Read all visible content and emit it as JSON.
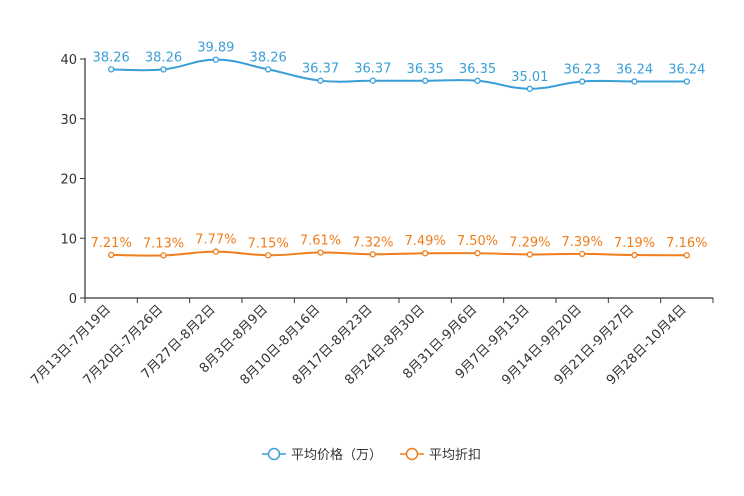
{
  "chart_data": {
    "type": "line",
    "title": "",
    "xlabel": "",
    "ylabel": "",
    "ylim": [
      0,
      40
    ],
    "yticks": [
      "0",
      "10",
      "20",
      "30",
      "40"
    ],
    "grid": false,
    "legend_position": "bottom-center",
    "categories": [
      "7月13日-7月19日",
      "7月20日-7月26日",
      "7月27日-8月2日",
      "8月3日-8月9日",
      "8月10日-8月16日",
      "8月17日-8月23日",
      "8月24日-8月30日",
      "8月31日-9月6日",
      "9月7日-9月13日",
      "9月14日-9月20日",
      "9月21日-9月27日",
      "9月28日-10月4日"
    ],
    "series": [
      {
        "name": "平均价格（万）",
        "color": "#3a9fd8",
        "values": [
          38.26,
          38.26,
          39.89,
          38.26,
          36.37,
          36.37,
          36.35,
          36.35,
          35.01,
          36.23,
          36.24,
          36.24
        ],
        "labels": [
          "38.26",
          "38.26",
          "39.89",
          "38.26",
          "36.37",
          "36.37",
          "36.35",
          "36.35",
          "35.01",
          "36.23",
          "36.24",
          "36.24"
        ]
      },
      {
        "name": "平均折扣",
        "color": "#f07e1c",
        "values": [
          7.21,
          7.13,
          7.77,
          7.15,
          7.61,
          7.32,
          7.49,
          7.5,
          7.29,
          7.39,
          7.19,
          7.16
        ],
        "labels": [
          "7.21%",
          "7.13%",
          "7.77%",
          "7.15%",
          "7.61%",
          "7.32%",
          "7.49%",
          "7.50%",
          "7.29%",
          "7.39%",
          "7.19%",
          "7.16%"
        ]
      }
    ]
  }
}
